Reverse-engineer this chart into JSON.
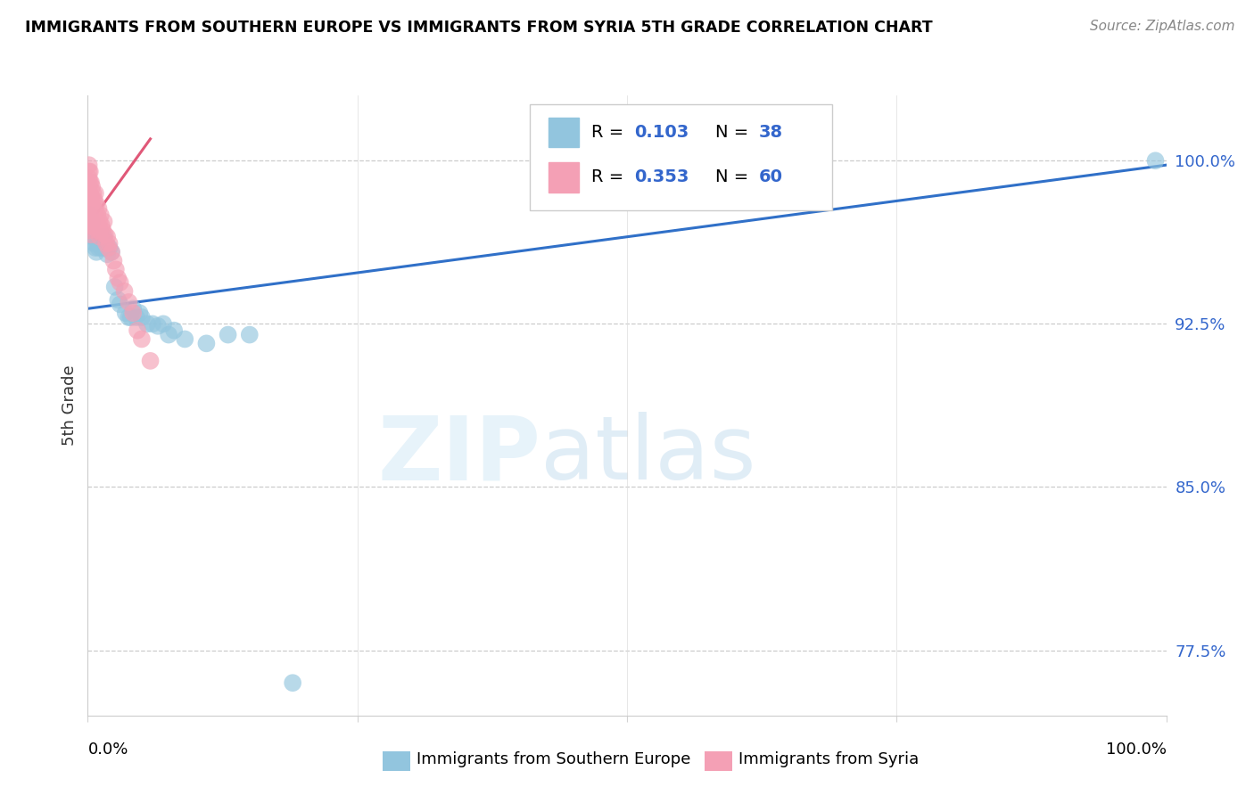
{
  "title": "IMMIGRANTS FROM SOUTHERN EUROPE VS IMMIGRANTS FROM SYRIA 5TH GRADE CORRELATION CHART",
  "source": "Source: ZipAtlas.com",
  "ylabel": "5th Grade",
  "ytick_labels": [
    "77.5%",
    "85.0%",
    "92.5%",
    "100.0%"
  ],
  "ytick_values": [
    0.775,
    0.85,
    0.925,
    1.0
  ],
  "xlim": [
    0.0,
    1.0
  ],
  "ylim": [
    0.745,
    1.03
  ],
  "legend1_r": "0.103",
  "legend1_n": "38",
  "legend2_r": "0.353",
  "legend2_n": "60",
  "blue_color": "#92c5de",
  "pink_color": "#f4a0b5",
  "trendline_color": "#3070c8",
  "pink_trendline_color": "#e05878",
  "blue_scatter_x": [
    0.002,
    0.003,
    0.004,
    0.005,
    0.006,
    0.007,
    0.008,
    0.009,
    0.01,
    0.012,
    0.013,
    0.015,
    0.016,
    0.018,
    0.02,
    0.022,
    0.025,
    0.028,
    0.03,
    0.035,
    0.038,
    0.04,
    0.042,
    0.045,
    0.048,
    0.05,
    0.055,
    0.06,
    0.065,
    0.07,
    0.075,
    0.08,
    0.09,
    0.11,
    0.13,
    0.15,
    0.19,
    0.99
  ],
  "blue_scatter_y": [
    0.975,
    0.968,
    0.972,
    0.965,
    0.962,
    0.96,
    0.958,
    0.962,
    0.96,
    0.963,
    0.96,
    0.965,
    0.96,
    0.957,
    0.96,
    0.958,
    0.942,
    0.936,
    0.934,
    0.93,
    0.928,
    0.928,
    0.932,
    0.928,
    0.93,
    0.928,
    0.925,
    0.925,
    0.924,
    0.925,
    0.92,
    0.922,
    0.918,
    0.916,
    0.92,
    0.92,
    0.76,
    1.0
  ],
  "pink_scatter_x": [
    0.001,
    0.001,
    0.001,
    0.001,
    0.001,
    0.001,
    0.001,
    0.001,
    0.001,
    0.001,
    0.002,
    0.002,
    0.002,
    0.002,
    0.002,
    0.002,
    0.003,
    0.003,
    0.003,
    0.003,
    0.003,
    0.004,
    0.004,
    0.004,
    0.005,
    0.005,
    0.005,
    0.006,
    0.006,
    0.007,
    0.007,
    0.008,
    0.008,
    0.009,
    0.009,
    0.01,
    0.01,
    0.011,
    0.011,
    0.012,
    0.012,
    0.013,
    0.014,
    0.015,
    0.016,
    0.017,
    0.018,
    0.019,
    0.02,
    0.022,
    0.024,
    0.026,
    0.028,
    0.03,
    0.034,
    0.038,
    0.042,
    0.046,
    0.05,
    0.058
  ],
  "pink_scatter_y": [
    0.998,
    0.995,
    0.992,
    0.988,
    0.985,
    0.982,
    0.978,
    0.975,
    0.972,
    0.968,
    0.995,
    0.99,
    0.985,
    0.98,
    0.975,
    0.97,
    0.99,
    0.984,
    0.978,
    0.972,
    0.966,
    0.988,
    0.98,
    0.972,
    0.985,
    0.978,
    0.97,
    0.982,
    0.975,
    0.985,
    0.977,
    0.98,
    0.972,
    0.975,
    0.968,
    0.978,
    0.97,
    0.972,
    0.965,
    0.975,
    0.967,
    0.97,
    0.968,
    0.972,
    0.966,
    0.962,
    0.965,
    0.96,
    0.962,
    0.958,
    0.954,
    0.95,
    0.946,
    0.944,
    0.94,
    0.935,
    0.93,
    0.922,
    0.918,
    0.908
  ],
  "blue_trend_x": [
    0.0,
    1.0
  ],
  "blue_trend_y": [
    0.932,
    0.998
  ],
  "pink_trend_x": [
    0.0,
    0.058
  ],
  "pink_trend_y": [
    0.97,
    1.01
  ]
}
